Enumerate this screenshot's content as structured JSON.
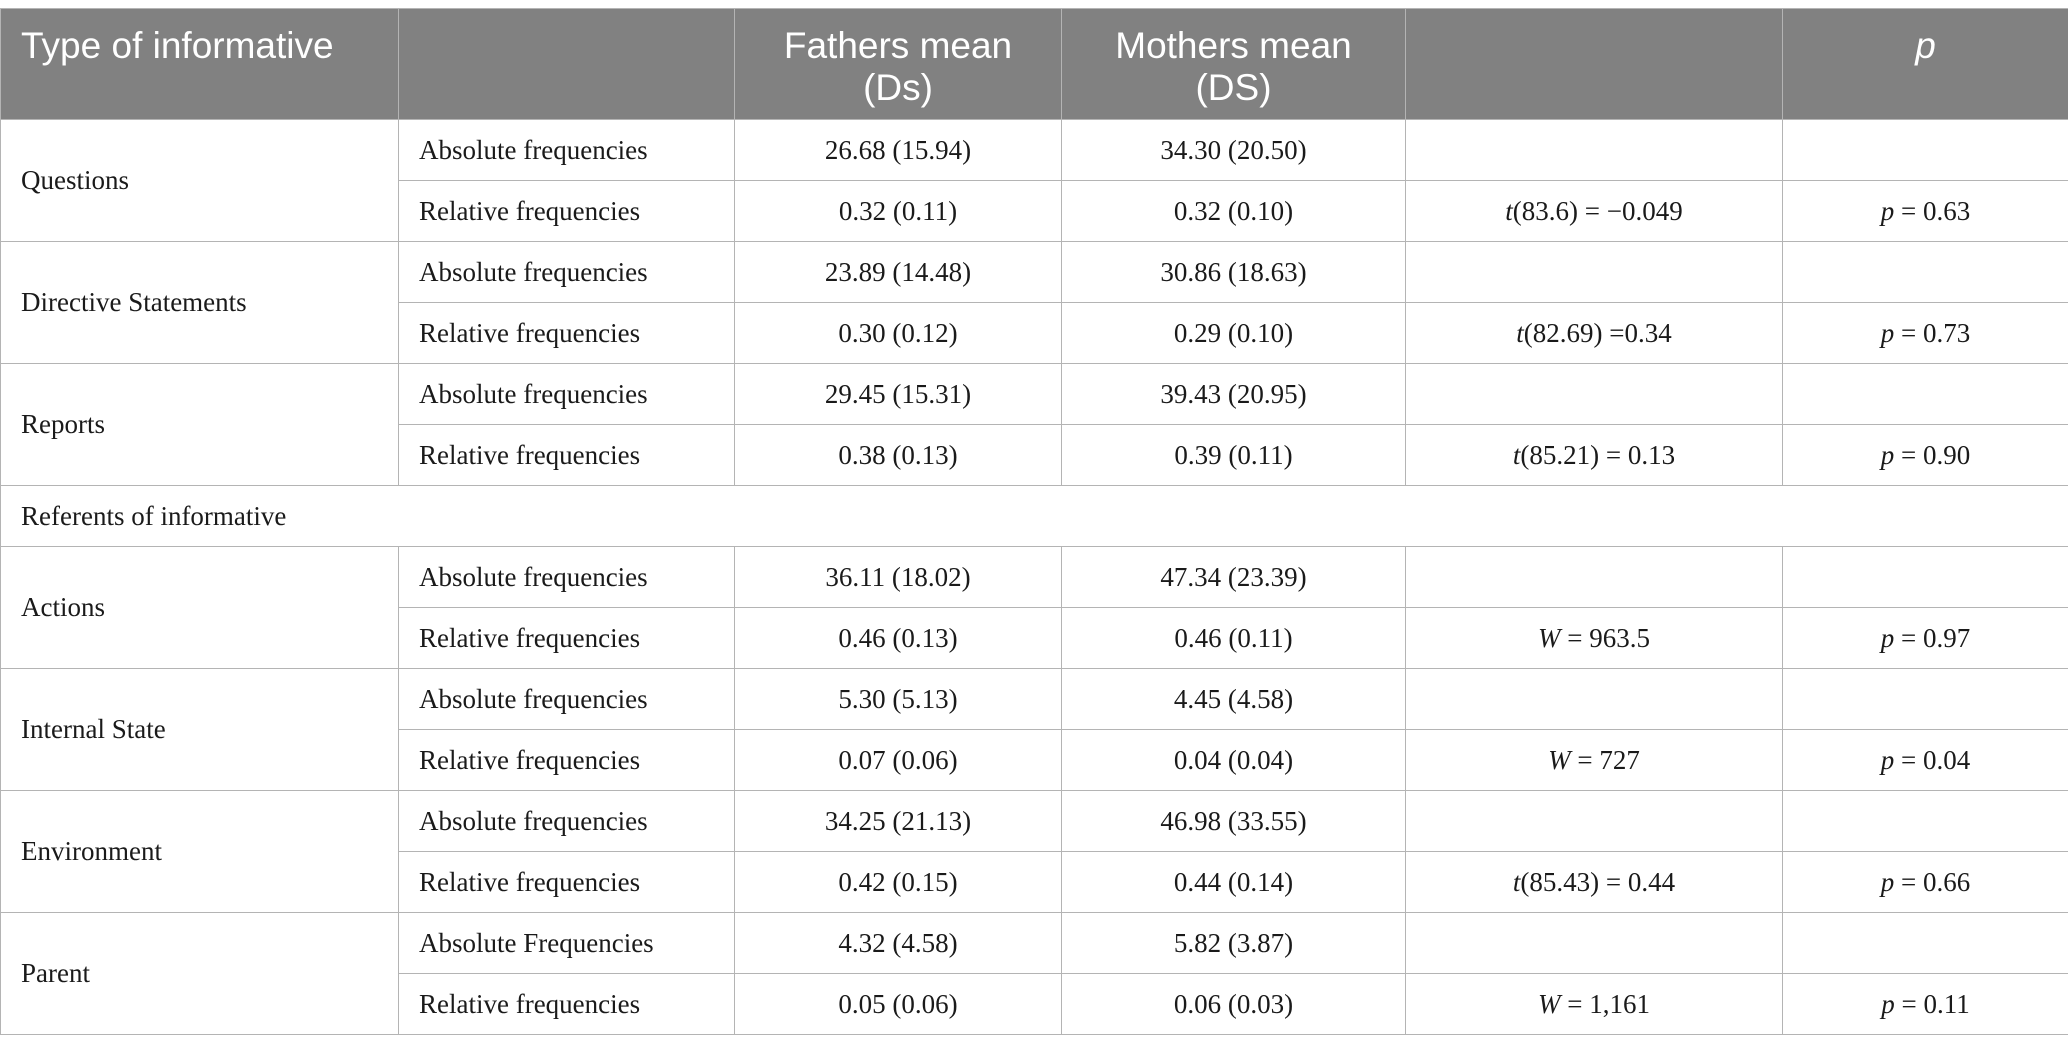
{
  "header": {
    "col_type": "Type of informative",
    "col_measure": "",
    "col_fathers_line1": "Fathers mean",
    "col_fathers_line2": "(Ds)",
    "col_mothers_line1": "Mothers mean",
    "col_mothers_line2": "(DS)",
    "col_test": "",
    "col_p": "p"
  },
  "groups": [
    {
      "name": "Questions",
      "abs_label": "Absolute frequencies",
      "abs_fathers": "26.68 (15.94)",
      "abs_mothers": "34.30 (20.50)",
      "rel_label": "Relative frequencies",
      "rel_fathers": "0.32 (0.11)",
      "rel_mothers": "0.32 (0.10)",
      "test_stat": "t",
      "test_df": "(83.6)",
      "test_value": " = −0.049",
      "p_sym": "p",
      "p_value": " = 0.63"
    },
    {
      "name": "Directive Statements",
      "abs_label": "Absolute frequencies",
      "abs_fathers": "23.89 (14.48)",
      "abs_mothers": "30.86 (18.63)",
      "rel_label": "Relative frequencies",
      "rel_fathers": "0.30 (0.12)",
      "rel_mothers": "0.29 (0.10)",
      "test_stat": "t",
      "test_df": "(82.69)",
      "test_value": " =0.34",
      "p_sym": "p",
      "p_value": " = 0.73"
    },
    {
      "name": "Reports",
      "abs_label": "Absolute frequencies",
      "abs_fathers": "29.45 (15.31)",
      "abs_mothers": "39.43 (20.95)",
      "rel_label": "Relative frequencies",
      "rel_fathers": "0.38 (0.13)",
      "rel_mothers": "0.39 (0.11)",
      "test_stat": "t",
      "test_df": "(85.21)",
      "test_value": " = 0.13",
      "p_sym": "p",
      "p_value": " = 0.90"
    }
  ],
  "section_label": "Referents of informative",
  "groups2": [
    {
      "name": "Actions",
      "abs_label": "Absolute frequencies",
      "abs_fathers": "36.11 (18.02)",
      "abs_mothers": "47.34 (23.39)",
      "rel_label": "Relative frequencies",
      "rel_fathers": "0.46 (0.13)",
      "rel_mothers": "0.46 (0.11)",
      "test_stat": "W",
      "test_df": "",
      "test_value": " = 963.5",
      "p_sym": "p",
      "p_value": " = 0.97"
    },
    {
      "name": "Internal State",
      "abs_label": "Absolute frequencies",
      "abs_fathers": "5.30 (5.13)",
      "abs_mothers": "4.45 (4.58)",
      "rel_label": "Relative frequencies",
      "rel_fathers": "0.07 (0.06)",
      "rel_mothers": "0.04 (0.04)",
      "test_stat": "W",
      "test_df": "",
      "test_value": " = 727",
      "p_sym": "p",
      "p_value": " = 0.04"
    },
    {
      "name": "Environment",
      "abs_label": "Absolute frequencies",
      "abs_fathers": "34.25 (21.13)",
      "abs_mothers": "46.98 (33.55)",
      "rel_label": "Relative frequencies",
      "rel_fathers": "0.42 (0.15)",
      "rel_mothers": "0.44 (0.14)",
      "test_stat": "t",
      "test_df": "(85.43)",
      "test_value": " = 0.44",
      "p_sym": "p",
      "p_value": " = 0.66"
    },
    {
      "name": "Parent",
      "abs_label": "Absolute Frequencies",
      "abs_fathers": "4.32 (4.58)",
      "abs_mothers": "5.82 (3.87)",
      "rel_label": "Relative frequencies",
      "rel_fathers": "0.05 (0.06)",
      "rel_mothers": "0.06 (0.03)",
      "test_stat": "W",
      "test_df": "",
      "test_value": " = 1,161",
      "p_sym": "p",
      "p_value": " = 0.11"
    }
  ]
}
